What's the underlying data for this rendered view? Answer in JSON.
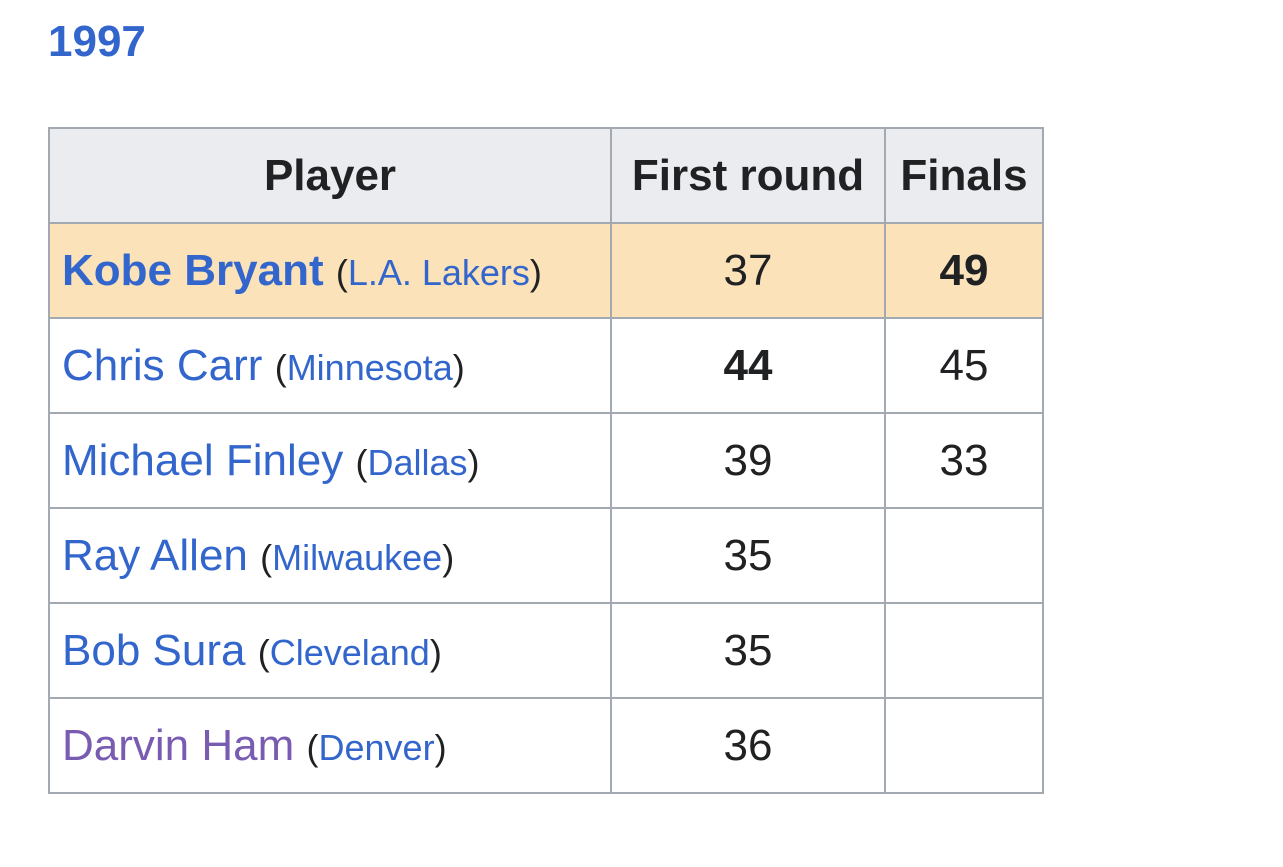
{
  "heading": {
    "year": "1997"
  },
  "table": {
    "headers": [
      "Player",
      "First round",
      "Finals"
    ],
    "rows": [
      {
        "player": "Kobe Bryant",
        "team": "L.A. Lakers",
        "first_round": "37",
        "finals": "49"
      },
      {
        "player": "Chris Carr",
        "team": "Minnesota",
        "first_round": "44",
        "finals": "45"
      },
      {
        "player": "Michael Finley",
        "team": "Dallas",
        "first_round": "39",
        "finals": "33"
      },
      {
        "player": "Ray Allen",
        "team": "Milwaukee",
        "first_round": "35",
        "finals": ""
      },
      {
        "player": "Bob Sura",
        "team": "Cleveland",
        "first_round": "35",
        "finals": ""
      },
      {
        "player": "Darvin Ham",
        "team": "Denver",
        "first_round": "36",
        "finals": ""
      }
    ]
  },
  "colors": {
    "link": "#3366cc",
    "visited_link": "#795cb2",
    "winner_row": "#fbe2b8",
    "header_bg": "#eaecf0",
    "border": "#a2a9b1"
  }
}
